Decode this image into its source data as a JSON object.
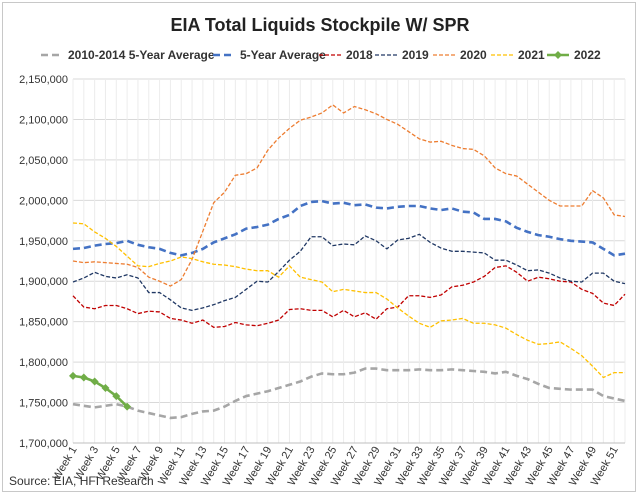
{
  "chart_data": {
    "type": "line",
    "title": "EIA Total Liquids Stockpile W/ SPR",
    "source": "Source: EIA, HFI Research",
    "xlabel": "",
    "ylabel": "",
    "ylim": [
      1700000,
      2150000
    ],
    "y_ticks": [
      1700000,
      1750000,
      1800000,
      1850000,
      1900000,
      1950000,
      2000000,
      2050000,
      2100000,
      2150000
    ],
    "y_tick_labels": [
      "1,700,000",
      "1,750,000",
      "1,800,000",
      "1,850,000",
      "1,900,000",
      "1,950,000",
      "2,000,000",
      "2,050,000",
      "2,100,000",
      "2,150,000"
    ],
    "x_tick_labels": [
      "Week 1",
      "Week 3",
      "Week 5",
      "Week 7",
      "Week 9",
      "Week 11",
      "Week 13",
      "Week 15",
      "Week 17",
      "Week 19",
      "Week 21",
      "Week 23",
      "Week 25",
      "Week 27",
      "Week 29",
      "Week 31",
      "Week 33",
      "Week 35",
      "Week 37",
      "Week 39",
      "Week 41",
      "Week 43",
      "Week 45",
      "Week 47",
      "Week 49",
      "Week 51"
    ],
    "x_tick_weeks": [
      1,
      3,
      5,
      7,
      9,
      11,
      13,
      15,
      17,
      19,
      21,
      23,
      25,
      27,
      29,
      31,
      33,
      35,
      37,
      39,
      41,
      43,
      45,
      47,
      49,
      51
    ],
    "x_range": [
      1,
      52
    ],
    "grid": true,
    "legend_position": "top",
    "series": [
      {
        "name": "2010-2014 5-Year Average",
        "color": "#a6a6a6",
        "style": "dashed-thick",
        "values": [
          1748000,
          1746000,
          1744000,
          1746000,
          1748000,
          1745000,
          1740000,
          1737000,
          1734000,
          1731000,
          1732000,
          1736000,
          1739000,
          1740000,
          1745000,
          1752000,
          1758000,
          1761000,
          1764000,
          1768000,
          1772000,
          1776000,
          1782000,
          1786000,
          1785000,
          1785000,
          1787000,
          1792000,
          1792000,
          1790000,
          1790000,
          1790000,
          1791000,
          1790000,
          1790000,
          1791000,
          1790000,
          1789000,
          1788000,
          1786000,
          1788000,
          1783000,
          1779000,
          1773000,
          1768000,
          1767000,
          1766000,
          1766000,
          1766000,
          1758000,
          1755000,
          1752000
        ]
      },
      {
        "name": "5-Year Average",
        "color": "#4472c4",
        "style": "dashed-thick",
        "values": [
          1940000,
          1941000,
          1944000,
          1946000,
          1947000,
          1950000,
          1945000,
          1942000,
          1940000,
          1935000,
          1932000,
          1935000,
          1940000,
          1948000,
          1953000,
          1958000,
          1965000,
          1967000,
          1970000,
          1977000,
          1982000,
          1993000,
          1998000,
          1999000,
          1996000,
          1997000,
          1994000,
          1995000,
          1991000,
          1990000,
          1992000,
          1993000,
          1993000,
          1990000,
          1988000,
          1990000,
          1986000,
          1985000,
          1977000,
          1977000,
          1974000,
          1966000,
          1961000,
          1957000,
          1955000,
          1952000,
          1950000,
          1949000,
          1948000,
          1940000,
          1932000,
          1934000
        ]
      },
      {
        "name": "2018",
        "color": "#c00000",
        "style": "dashed",
        "values": [
          1882000,
          1868000,
          1866000,
          1870000,
          1870000,
          1866000,
          1860000,
          1863000,
          1862000,
          1854000,
          1852000,
          1848000,
          1852000,
          1843000,
          1844000,
          1849000,
          1846000,
          1845000,
          1848000,
          1852000,
          1865000,
          1866000,
          1864000,
          1864000,
          1856000,
          1864000,
          1856000,
          1861000,
          1853000,
          1866000,
          1868000,
          1882000,
          1882000,
          1880000,
          1883000,
          1893000,
          1895000,
          1899000,
          1906000,
          1917000,
          1919000,
          1911000,
          1900000,
          1905000,
          1903000,
          1900000,
          1899000,
          1890000,
          1885000,
          1873000,
          1870000,
          1884000
        ]
      },
      {
        "name": "2019",
        "color": "#203864",
        "style": "dashed",
        "values": [
          1899000,
          1904000,
          1911000,
          1906000,
          1904000,
          1908000,
          1904000,
          1886000,
          1886000,
          1877000,
          1867000,
          1864000,
          1867000,
          1871000,
          1876000,
          1880000,
          1890000,
          1900000,
          1899000,
          1912000,
          1926000,
          1937000,
          1955000,
          1955000,
          1944000,
          1946000,
          1945000,
          1956000,
          1950000,
          1940000,
          1951000,
          1953000,
          1958000,
          1948000,
          1941000,
          1937000,
          1937000,
          1936000,
          1935000,
          1926000,
          1926000,
          1920000,
          1913000,
          1914000,
          1910000,
          1904000,
          1900000,
          1899000,
          1910000,
          1910000,
          1900000,
          1897000
        ]
      },
      {
        "name": "2020",
        "color": "#ed7d31",
        "style": "dashed",
        "values": [
          1925000,
          1923000,
          1924000,
          1923000,
          1922000,
          1921000,
          1917000,
          1905000,
          1900000,
          1894000,
          1902000,
          1927000,
          1962000,
          1997000,
          2010000,
          2031000,
          2033000,
          2040000,
          2062000,
          2077000,
          2089000,
          2099000,
          2103000,
          2108000,
          2118000,
          2108000,
          2116000,
          2112000,
          2107000,
          2100000,
          2094000,
          2085000,
          2076000,
          2072000,
          2073000,
          2068000,
          2064000,
          2063000,
          2055000,
          2040000,
          2033000,
          2030000,
          2020000,
          2010000,
          2000000,
          1993000,
          1993000,
          1993000,
          2012000,
          2003000,
          1982000,
          1980000
        ]
      },
      {
        "name": "2021",
        "color": "#ffc000",
        "style": "dashed",
        "values": [
          1972000,
          1971000,
          1961000,
          1953000,
          1943000,
          1931000,
          1919000,
          1918000,
          1922000,
          1925000,
          1930000,
          1928000,
          1924000,
          1921000,
          1920000,
          1918000,
          1915000,
          1913000,
          1913000,
          1905000,
          1919000,
          1905000,
          1902000,
          1899000,
          1887000,
          1890000,
          1888000,
          1886000,
          1886000,
          1878000,
          1867000,
          1857000,
          1848000,
          1843000,
          1851000,
          1852000,
          1854000,
          1848000,
          1848000,
          1846000,
          1842000,
          1834000,
          1827000,
          1822000,
          1823000,
          1825000,
          1817000,
          1808000,
          1795000,
          1781000,
          1787000,
          1787000
        ]
      },
      {
        "name": "2022",
        "color": "#70ad47",
        "style": "solid-markers",
        "values": [
          1783000,
          1781000,
          1776000,
          1768000,
          1758000,
          1745000
        ]
      }
    ]
  }
}
